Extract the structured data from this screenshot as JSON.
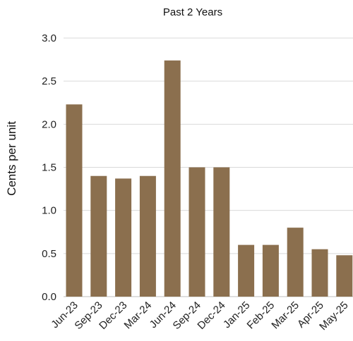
{
  "chart_data": {
    "type": "bar",
    "title": "Past 2 Years",
    "xlabel": "",
    "ylabel": "Cents per unit",
    "categories": [
      "Jun-23",
      "Sep-23",
      "Dec-23",
      "Mar-24",
      "Jun-24",
      "Sep-24",
      "Dec-24",
      "Jan-25",
      "Feb-25",
      "Mar-25",
      "Apr-25",
      "May-25"
    ],
    "values": [
      2.23,
      1.4,
      1.37,
      1.4,
      2.74,
      1.5,
      1.5,
      0.6,
      0.6,
      0.8,
      0.55,
      0.48
    ],
    "ylim": [
      0,
      3.0
    ],
    "yticks": [
      "0.0",
      "0.5",
      "1.0",
      "1.5",
      "2.0",
      "2.5",
      "3.0"
    ],
    "grid": true,
    "bar_color": "#8b6f4e"
  }
}
